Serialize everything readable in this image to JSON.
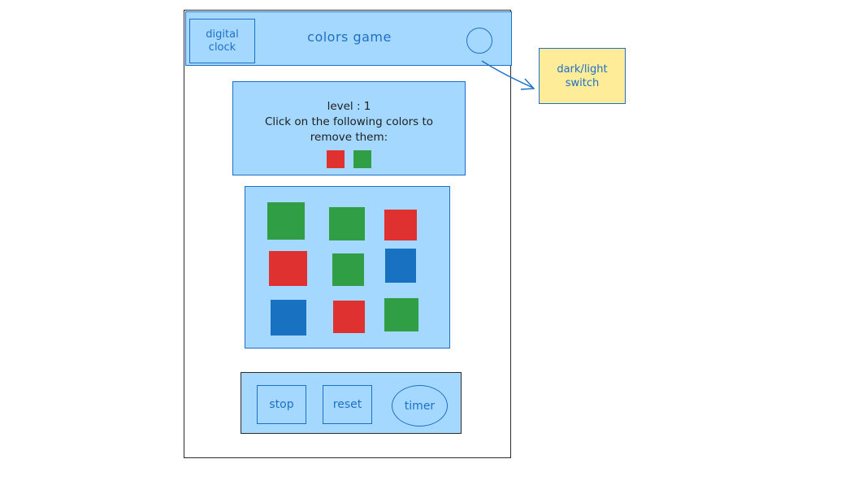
{
  "header": {
    "clock_line1": "digital",
    "clock_line2": "clock",
    "title": "colors game"
  },
  "annotation": {
    "line1": "dark/light",
    "line2": "switch"
  },
  "info": {
    "level_text": "level : 1",
    "instruction_line1": "Click on the following colors to",
    "instruction_line2": "remove them:",
    "targets": [
      "red",
      "green"
    ]
  },
  "board": {
    "tiles": [
      [
        "green",
        "green",
        "red"
      ],
      [
        "red",
        "green",
        "blue"
      ],
      [
        "blue",
        "red",
        "green"
      ]
    ]
  },
  "controls": {
    "stop_label": "stop",
    "reset_label": "reset",
    "timer_label": "timer"
  },
  "colors": {
    "accent": "#1e6fc7",
    "panel": "#a5d8ff",
    "note": "#ffec99",
    "red": "#e03131",
    "green": "#2f9e44",
    "blue": "#1971c2"
  }
}
